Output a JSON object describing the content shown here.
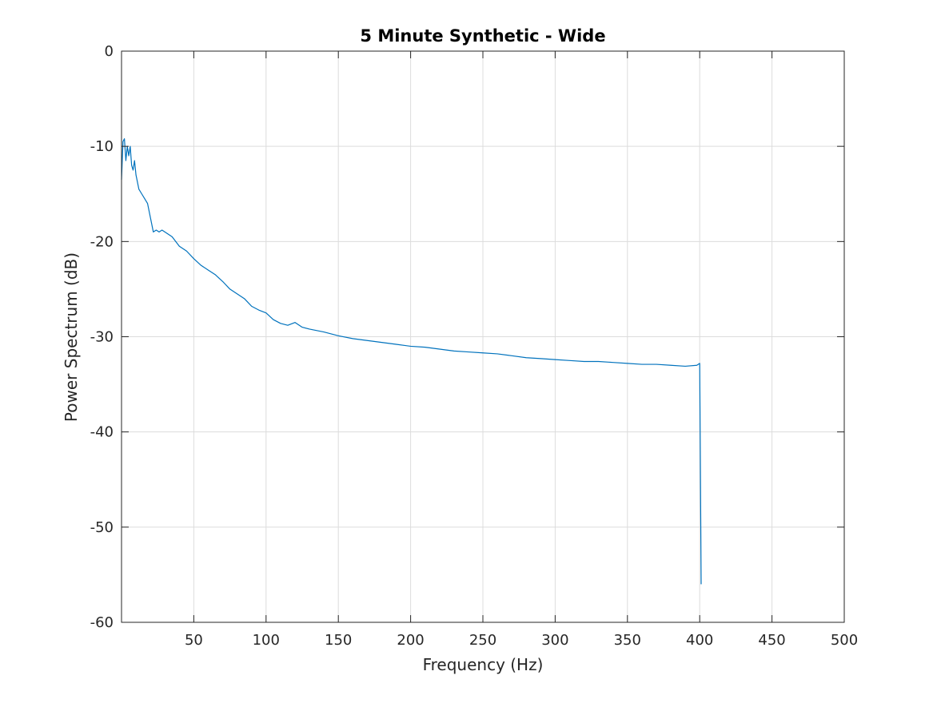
{
  "chart_data": {
    "type": "line",
    "title": "5 Minute Synthetic - Wide",
    "xlabel": "Frequency (Hz)",
    "ylabel": "Power Spectrum (dB)",
    "xlim": [
      0,
      500
    ],
    "ylim": [
      -60,
      0
    ],
    "xticks": [
      50,
      100,
      150,
      200,
      250,
      300,
      350,
      400,
      450,
      500
    ],
    "yticks": [
      0,
      -10,
      -20,
      -30,
      -40,
      -50,
      -60
    ],
    "grid": true,
    "legend": "none",
    "colors": {
      "line": "#0072BD",
      "grid": "#dcdcdc",
      "axes": "#262626"
    },
    "series": [
      {
        "x": [
          0,
          1,
          2,
          3,
          4,
          5,
          6,
          7,
          8,
          9,
          10,
          12,
          14,
          16,
          18,
          20,
          22,
          24,
          26,
          28,
          30,
          35,
          40,
          45,
          50,
          55,
          60,
          65,
          70,
          75,
          80,
          85,
          90,
          95,
          100,
          105,
          110,
          115,
          120,
          125,
          130,
          140,
          150,
          160,
          170,
          180,
          190,
          200,
          210,
          220,
          230,
          240,
          250,
          260,
          270,
          280,
          290,
          300,
          310,
          320,
          330,
          340,
          350,
          360,
          370,
          380,
          390,
          398,
          400,
          401
        ],
        "y": [
          -13.5,
          -9.5,
          -9.2,
          -11.5,
          -10.0,
          -11.0,
          -10.0,
          -12.0,
          -12.5,
          -11.5,
          -13.0,
          -14.5,
          -15.0,
          -15.5,
          -16.0,
          -17.5,
          -19.0,
          -18.8,
          -19.0,
          -18.8,
          -19.0,
          -19.5,
          -20.5,
          -21.0,
          -21.8,
          -22.5,
          -23.0,
          -23.5,
          -24.2,
          -25.0,
          -25.5,
          -26.0,
          -26.8,
          -27.2,
          -27.5,
          -28.2,
          -28.6,
          -28.8,
          -28.5,
          -29.0,
          -29.2,
          -29.5,
          -29.9,
          -30.2,
          -30.4,
          -30.6,
          -30.8,
          -31.0,
          -31.1,
          -31.3,
          -31.5,
          -31.6,
          -31.7,
          -31.8,
          -32.0,
          -32.2,
          -32.3,
          -32.4,
          -32.5,
          -32.6,
          -32.6,
          -32.7,
          -32.8,
          -32.9,
          -32.9,
          -33.0,
          -33.1,
          -33.0,
          -32.8,
          -56.0
        ]
      }
    ]
  }
}
